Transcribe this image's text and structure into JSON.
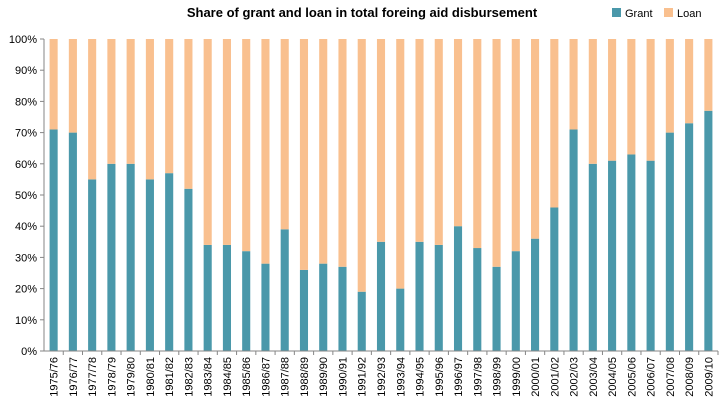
{
  "chart_data": {
    "type": "bar",
    "stacked": true,
    "title": "Share of grant and loan in total foreing aid disbursement",
    "xlabel": "",
    "ylabel": "",
    "ylim": [
      0,
      100
    ],
    "yticks": [
      "0%",
      "10%",
      "20%",
      "30%",
      "40%",
      "50%",
      "60%",
      "70%",
      "80%",
      "90%",
      "100%"
    ],
    "grid": false,
    "legend": "top-right",
    "categories": [
      "1975/76",
      "1976/77",
      "1977/78",
      "1978/79",
      "1979/80",
      "1980/81",
      "1981/82",
      "1982/83",
      "1983/84",
      "1984/85",
      "1985/86",
      "1986/87",
      "1987/88",
      "1988/89",
      "1989/90",
      "1990/91",
      "1991/92",
      "1992/93",
      "1993/94",
      "1994/95",
      "1995/96",
      "1996/97",
      "1997/98",
      "1998/99",
      "1999/00",
      "2000/01",
      "2001/02",
      "2002/03",
      "2003/04",
      "2004/05",
      "2005/06",
      "2006/07",
      "2007/08",
      "2008/09",
      "2009/10"
    ],
    "series": [
      {
        "name": "Grant",
        "color": "#4A98AA",
        "values": [
          71,
          70,
          55,
          60,
          60,
          55,
          57,
          52,
          34,
          34,
          32,
          28,
          39,
          26,
          28,
          27,
          19,
          35,
          20,
          35,
          34,
          40,
          33,
          27,
          32,
          36,
          46,
          71,
          60,
          61,
          63,
          61,
          70,
          73,
          77
        ]
      },
      {
        "name": "Loan",
        "color": "#F9C08F",
        "values": [
          29,
          30,
          45,
          40,
          40,
          45,
          43,
          48,
          66,
          66,
          68,
          72,
          61,
          74,
          72,
          73,
          81,
          65,
          80,
          65,
          66,
          60,
          67,
          73,
          68,
          64,
          54,
          29,
          40,
          39,
          37,
          39,
          30,
          27,
          23
        ]
      }
    ]
  }
}
